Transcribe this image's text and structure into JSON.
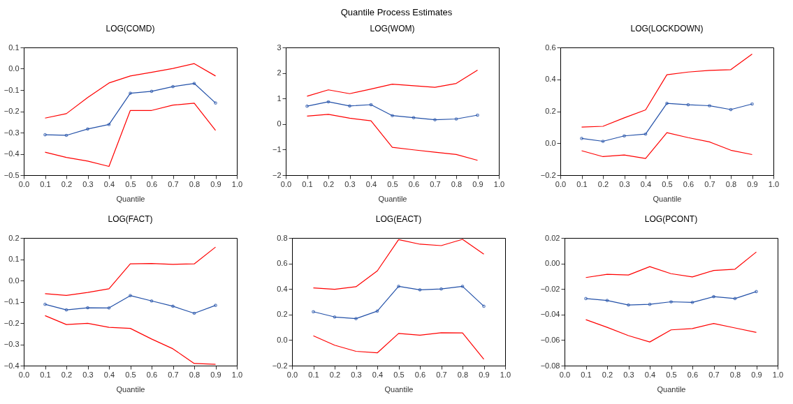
{
  "chart_data": [
    {
      "type": "line",
      "title": "LOG(COMD)",
      "xlabel": "Quantile",
      "annotations": [
        "Quantile Process Estimates"
      ],
      "x": [
        0.1,
        0.2,
        0.3,
        0.4,
        0.5,
        0.6,
        0.7,
        0.8,
        0.9
      ],
      "xlim": [
        0,
        1
      ],
      "xticks": [
        {
          "value": 0,
          "label": "0.0"
        },
        {
          "value": 0.1,
          "label": "0.1"
        },
        {
          "value": 0.2,
          "label": "0.2"
        },
        {
          "value": 0.3,
          "label": "0.3"
        },
        {
          "value": 0.4,
          "label": "0.4"
        },
        {
          "value": 0.5,
          "label": "0.5"
        },
        {
          "value": 0.6,
          "label": "0.6"
        },
        {
          "value": 0.7,
          "label": "0.7"
        },
        {
          "value": 0.8,
          "label": "0.8"
        },
        {
          "value": 0.9,
          "label": "0.9"
        },
        {
          "value": 1,
          "label": "1.0"
        }
      ],
      "ylim": [
        -0.5,
        0.1
      ],
      "yticks": [
        {
          "value": -0.5,
          "label": "−0.5"
        },
        {
          "value": -0.4,
          "label": "−0.4"
        },
        {
          "value": -0.3,
          "label": "−0.3"
        },
        {
          "value": -0.2,
          "label": "−0.2"
        },
        {
          "value": -0.1,
          "label": "−0.1"
        },
        {
          "value": 0,
          "label": "0.0"
        },
        {
          "value": 0.1,
          "label": "0.1"
        }
      ],
      "series": [
        {
          "color": "#ff0000",
          "marker": "none",
          "values": [
            -0.232,
            -0.211,
            -0.135,
            -0.067,
            -0.034,
            -0.017,
            0.001,
            0.024,
            -0.034
          ]
        },
        {
          "color": "#ff0000",
          "marker": "none",
          "values": [
            -0.392,
            -0.417,
            -0.434,
            -0.459,
            -0.196,
            -0.196,
            -0.171,
            -0.162,
            -0.29
          ]
        },
        {
          "color": "#2250a8",
          "marker": "circle",
          "values": [
            -0.31,
            -0.313,
            -0.283,
            -0.262,
            -0.115,
            -0.106,
            -0.084,
            -0.069,
            -0.161
          ]
        }
      ]
    },
    {
      "type": "line",
      "title": "LOG(WOM)",
      "xlabel": "Quantile",
      "x": [
        0.1,
        0.2,
        0.3,
        0.4,
        0.5,
        0.6,
        0.7,
        0.8,
        0.9
      ],
      "xlim": [
        0,
        1
      ],
      "xticks": [
        {
          "value": 0,
          "label": "0.0"
        },
        {
          "value": 0.1,
          "label": "0.1"
        },
        {
          "value": 0.2,
          "label": "0.2"
        },
        {
          "value": 0.3,
          "label": "0.3"
        },
        {
          "value": 0.4,
          "label": "0.4"
        },
        {
          "value": 0.5,
          "label": "0.5"
        },
        {
          "value": 0.6,
          "label": "0.6"
        },
        {
          "value": 0.7,
          "label": "0.7"
        },
        {
          "value": 0.8,
          "label": "0.8"
        },
        {
          "value": 0.9,
          "label": "0.9"
        },
        {
          "value": 1,
          "label": "1.0"
        }
      ],
      "ylim": [
        -2,
        3
      ],
      "yticks": [
        {
          "value": -2,
          "label": "−2"
        },
        {
          "value": -1,
          "label": "−1"
        },
        0,
        1,
        2,
        3
      ],
      "series": [
        {
          "color": "#ff0000",
          "marker": "none",
          "values": [
            1.09,
            1.34,
            1.19,
            1.37,
            1.56,
            1.5,
            1.44,
            1.59,
            2.11
          ]
        },
        {
          "color": "#ff0000",
          "marker": "none",
          "values": [
            0.31,
            0.38,
            0.23,
            0.13,
            -0.91,
            -1.01,
            -1.1,
            -1.19,
            -1.42
          ]
        },
        {
          "color": "#2250a8",
          "marker": "circle",
          "values": [
            0.7,
            0.87,
            0.71,
            0.76,
            0.33,
            0.25,
            0.17,
            0.2,
            0.35
          ]
        }
      ]
    },
    {
      "type": "line",
      "title": "LOG(LOCKDOWN)",
      "xlabel": "Quantile",
      "x": [
        0.1,
        0.2,
        0.3,
        0.4,
        0.5,
        0.6,
        0.7,
        0.8,
        0.9
      ],
      "xlim": [
        0,
        1
      ],
      "xticks": [
        {
          "value": 0,
          "label": "0.0"
        },
        {
          "value": 0.1,
          "label": "0.1"
        },
        {
          "value": 0.2,
          "label": "0.2"
        },
        {
          "value": 0.3,
          "label": "0.3"
        },
        {
          "value": 0.4,
          "label": "0.4"
        },
        {
          "value": 0.5,
          "label": "0.5"
        },
        {
          "value": 0.6,
          "label": "0.6"
        },
        {
          "value": 0.7,
          "label": "0.7"
        },
        {
          "value": 0.8,
          "label": "0.8"
        },
        {
          "value": 0.9,
          "label": "0.9"
        },
        {
          "value": 1,
          "label": "1.0"
        }
      ],
      "ylim": [
        -0.2,
        0.6
      ],
      "yticks": [
        {
          "value": -0.2,
          "label": "−0.2"
        },
        {
          "value": 0,
          "label": "0.0"
        },
        {
          "value": 0.2,
          "label": "0.2"
        },
        {
          "value": 0.4,
          "label": "0.4"
        },
        {
          "value": 0.6,
          "label": "0.6"
        }
      ],
      "series": [
        {
          "color": "#ff0000",
          "marker": "none",
          "values": [
            0.101,
            0.106,
            0.159,
            0.209,
            0.429,
            0.446,
            0.456,
            0.461,
            0.558
          ]
        },
        {
          "color": "#ff0000",
          "marker": "none",
          "values": [
            -0.047,
            -0.084,
            -0.074,
            -0.096,
            0.066,
            0.035,
            0.008,
            -0.044,
            -0.071
          ]
        },
        {
          "color": "#2250a8",
          "marker": "circle",
          "values": [
            0.03,
            0.012,
            0.046,
            0.057,
            0.25,
            0.241,
            0.235,
            0.211,
            0.246
          ]
        }
      ]
    },
    {
      "type": "line",
      "title": "LOG(FACT)",
      "xlabel": "Quantile",
      "x": [
        0.1,
        0.2,
        0.3,
        0.4,
        0.5,
        0.6,
        0.7,
        0.8,
        0.9
      ],
      "xlim": [
        0,
        1
      ],
      "xticks": [
        {
          "value": 0,
          "label": "0.0"
        },
        {
          "value": 0.1,
          "label": "0.1"
        },
        {
          "value": 0.2,
          "label": "0.2"
        },
        {
          "value": 0.3,
          "label": "0.3"
        },
        {
          "value": 0.4,
          "label": "0.4"
        },
        {
          "value": 0.5,
          "label": "0.5"
        },
        {
          "value": 0.6,
          "label": "0.6"
        },
        {
          "value": 0.7,
          "label": "0.7"
        },
        {
          "value": 0.8,
          "label": "0.8"
        },
        {
          "value": 0.9,
          "label": "0.9"
        },
        {
          "value": 1,
          "label": "1.0"
        }
      ],
      "ylim": [
        -0.4,
        0.2
      ],
      "yticks": [
        {
          "value": -0.4,
          "label": "−0.4"
        },
        {
          "value": -0.3,
          "label": "−0.3"
        },
        {
          "value": -0.2,
          "label": "−0.2"
        },
        {
          "value": -0.1,
          "label": "−0.1"
        },
        {
          "value": 0,
          "label": "0.0"
        },
        {
          "value": 0.1,
          "label": "0.1"
        },
        {
          "value": 0.2,
          "label": "0.2"
        }
      ],
      "series": [
        {
          "color": "#ff0000",
          "marker": "none",
          "values": [
            -0.062,
            -0.07,
            -0.056,
            -0.039,
            0.078,
            0.08,
            0.076,
            0.078,
            0.157
          ]
        },
        {
          "color": "#ff0000",
          "marker": "none",
          "values": [
            -0.165,
            -0.207,
            -0.201,
            -0.22,
            -0.225,
            -0.275,
            -0.321,
            -0.39,
            -0.394
          ]
        },
        {
          "color": "#2250a8",
          "marker": "circle",
          "values": [
            -0.112,
            -0.138,
            -0.128,
            -0.129,
            -0.071,
            -0.096,
            -0.121,
            -0.154,
            -0.117
          ]
        }
      ]
    },
    {
      "type": "line",
      "title": "LOG(EACT)",
      "xlabel": "Quantile",
      "x": [
        0.1,
        0.2,
        0.3,
        0.4,
        0.5,
        0.6,
        0.7,
        0.8,
        0.9
      ],
      "xlim": [
        0,
        1
      ],
      "xticks": [
        {
          "value": 0,
          "label": "0.0"
        },
        {
          "value": 0.1,
          "label": "0.1"
        },
        {
          "value": 0.2,
          "label": "0.2"
        },
        {
          "value": 0.3,
          "label": "0.3"
        },
        {
          "value": 0.4,
          "label": "0.4"
        },
        {
          "value": 0.5,
          "label": "0.5"
        },
        {
          "value": 0.6,
          "label": "0.6"
        },
        {
          "value": 0.7,
          "label": "0.7"
        },
        {
          "value": 0.8,
          "label": "0.8"
        },
        {
          "value": 0.9,
          "label": "0.9"
        },
        {
          "value": 1,
          "label": "1.0"
        }
      ],
      "ylim": [
        -0.2,
        0.8
      ],
      "yticks": [
        {
          "value": -0.2,
          "label": "−0.2"
        },
        {
          "value": 0,
          "label": "0.0"
        },
        {
          "value": 0.2,
          "label": "0.2"
        },
        {
          "value": 0.4,
          "label": "0.4"
        },
        {
          "value": 0.6,
          "label": "0.6"
        },
        {
          "value": 0.8,
          "label": "0.8"
        }
      ],
      "series": [
        {
          "color": "#ff0000",
          "marker": "none",
          "values": [
            0.409,
            0.398,
            0.418,
            0.542,
            0.787,
            0.751,
            0.74,
            0.789,
            0.673
          ]
        },
        {
          "color": "#ff0000",
          "marker": "none",
          "values": [
            0.034,
            -0.04,
            -0.088,
            -0.1,
            0.052,
            0.038,
            0.058,
            0.056,
            -0.15
          ]
        },
        {
          "color": "#2250a8",
          "marker": "circle",
          "values": [
            0.222,
            0.181,
            0.168,
            0.227,
            0.421,
            0.394,
            0.4,
            0.421,
            0.265
          ]
        }
      ]
    },
    {
      "type": "line",
      "title": "LOG(PCONT)",
      "xlabel": "Quantile",
      "x": [
        0.1,
        0.2,
        0.3,
        0.4,
        0.5,
        0.6,
        0.7,
        0.8,
        0.9
      ],
      "xlim": [
        0,
        1
      ],
      "xticks": [
        {
          "value": 0,
          "label": "0.0"
        },
        {
          "value": 0.1,
          "label": "0.1"
        },
        {
          "value": 0.2,
          "label": "0.2"
        },
        {
          "value": 0.3,
          "label": "0.3"
        },
        {
          "value": 0.4,
          "label": "0.4"
        },
        {
          "value": 0.5,
          "label": "0.5"
        },
        {
          "value": 0.6,
          "label": "0.6"
        },
        {
          "value": 0.7,
          "label": "0.7"
        },
        {
          "value": 0.8,
          "label": "0.8"
        },
        {
          "value": 0.9,
          "label": "0.9"
        },
        {
          "value": 1,
          "label": "1.0"
        }
      ],
      "ylim": [
        -0.08,
        0.02
      ],
      "yticks": [
        {
          "value": -0.08,
          "label": "−0.08"
        },
        {
          "value": -0.06,
          "label": "−0.06"
        },
        {
          "value": -0.04,
          "label": "−0.04"
        },
        {
          "value": -0.02,
          "label": "−0.02"
        },
        {
          "value": 0,
          "label": "0.00"
        },
        {
          "value": 0.02,
          "label": "0.02"
        }
      ],
      "series": [
        {
          "color": "#ff0000",
          "marker": "none",
          "values": [
            -0.011,
            -0.0085,
            -0.009,
            -0.0025,
            -0.008,
            -0.0105,
            -0.0055,
            -0.0045,
            0.009
          ]
        },
        {
          "color": "#ff0000",
          "marker": "none",
          "values": [
            -0.044,
            -0.05,
            -0.0565,
            -0.0615,
            -0.052,
            -0.051,
            -0.047,
            -0.0505,
            -0.054
          ]
        },
        {
          "color": "#2250a8",
          "marker": "circle",
          "values": [
            -0.0275,
            -0.029,
            -0.0325,
            -0.032,
            -0.03,
            -0.0305,
            -0.026,
            -0.0275,
            -0.022
          ]
        }
      ]
    }
  ]
}
